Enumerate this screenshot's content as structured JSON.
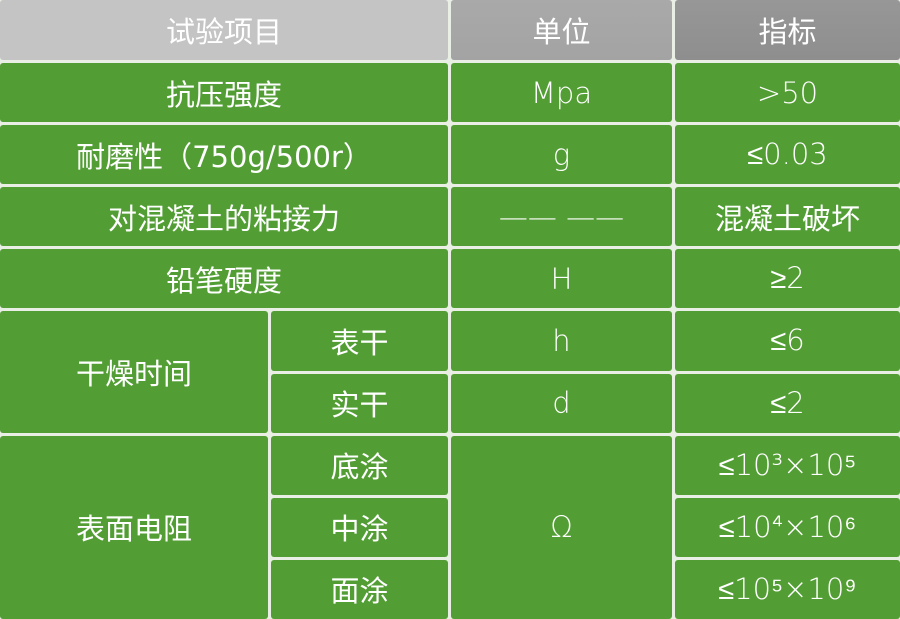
{
  "header": {
    "item": "试验项目",
    "unit": "单位",
    "spec": "指标"
  },
  "rows": [
    {
      "item": "抗压强度",
      "unit": "Mpa",
      "spec": ">50"
    },
    {
      "item": "耐磨性（750g/500r）",
      "unit": "g",
      "spec": "≤0.03"
    },
    {
      "item": "对混凝土的粘接力",
      "unit": "—— ——",
      "spec": "混凝土破坏"
    },
    {
      "item": "铅笔硬度",
      "unit": "H",
      "spec": "≥2"
    }
  ],
  "drying": {
    "item": "干燥时间",
    "sub": [
      {
        "name": "表干",
        "unit": "h",
        "spec": "≤6"
      },
      {
        "name": "实干",
        "unit": "d",
        "spec": "≤2"
      }
    ]
  },
  "resistance": {
    "item": "表面电阻",
    "unit": "Ω",
    "sub": [
      {
        "name": "底涂",
        "spec": "≤10³×10⁵"
      },
      {
        "name": "中涂",
        "spec": "≤10⁴×10⁶"
      },
      {
        "name": "面涂",
        "spec": "≤10⁵×10⁹"
      }
    ]
  },
  "colors": {
    "cell": "#529e34",
    "header_1": "#c4c4c4",
    "header_2": "#a6a6a6",
    "header_3": "#939393",
    "text": "#ffffff"
  }
}
